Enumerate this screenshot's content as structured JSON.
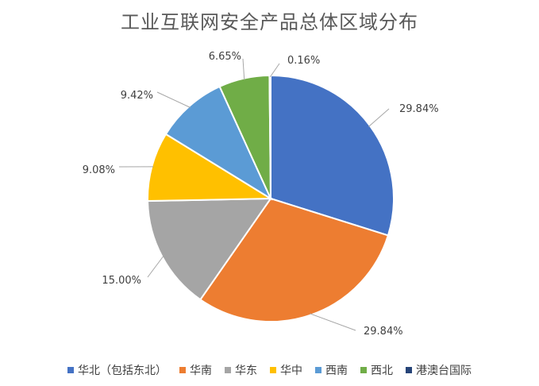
{
  "chart_data": {
    "type": "pie",
    "title": "工业互联网安全产品总体区域分布",
    "categories": [
      "华北（包括东北）",
      "华南",
      "华东",
      "华中",
      "西南",
      "西北",
      "港澳台国际"
    ],
    "values": [
      29.84,
      29.84,
      15.0,
      9.08,
      9.42,
      6.65,
      0.16
    ],
    "labels": [
      "29.84%",
      "29.84%",
      "15.00%",
      "9.08%",
      "9.42%",
      "6.65%",
      "0.16%"
    ],
    "colors": [
      "#4472c4",
      "#ed7d31",
      "#a5a5a5",
      "#ffc000",
      "#5b9bd5",
      "#70ad47",
      "#264478"
    ],
    "legend_position": "bottom"
  }
}
